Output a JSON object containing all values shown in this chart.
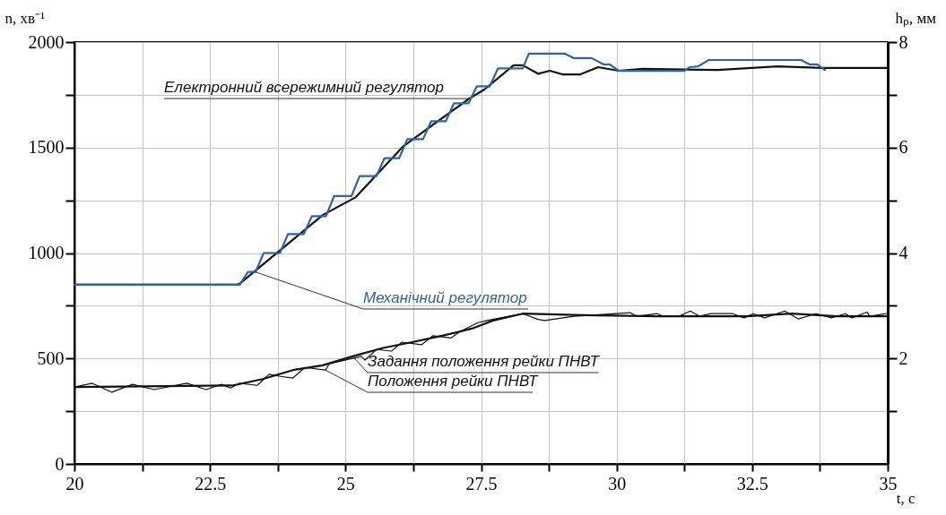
{
  "chart_data": {
    "type": "line",
    "xlabel": "t, c",
    "ylabel": "n, хв⁻¹",
    "y2label": "hₚ, мм",
    "xlim": [
      20,
      35
    ],
    "xticks": [
      20,
      {
        "value": 21.25,
        "label": null
      },
      22.5,
      {
        "value": 23.75,
        "label": null
      },
      25,
      {
        "value": 26.25,
        "label": null
      },
      27.5,
      {
        "value": 28.75,
        "label": null
      },
      30,
      {
        "value": 31.25,
        "label": null
      },
      32.5,
      {
        "value": 33.75,
        "label": null
      },
      35
    ],
    "ylim": [
      0,
      2000
    ],
    "yticks": [
      0,
      {
        "value": 250,
        "label": null
      },
      500,
      {
        "value": 750,
        "label": null
      },
      1000,
      {
        "value": 1250,
        "label": null
      },
      1500,
      {
        "value": 1750,
        "label": null
      },
      2000
    ],
    "y2lim": [
      0,
      8
    ],
    "y2ticks": [
      {
        "value": 1,
        "label": null
      },
      2,
      {
        "value": 3,
        "label": null
      },
      4,
      {
        "value": 5,
        "label": null
      },
      6,
      {
        "value": 7,
        "label": null
      },
      8
    ],
    "grid": true,
    "series": [
      {
        "name": "Електронний всережимний регулятор",
        "color": "#111111",
        "x": [
          20,
          23.0,
          23.04,
          24.58,
          25.19,
          26.07,
          27.28,
          27.56,
          28.1,
          28.27,
          28.55,
          28.77,
          29.0,
          29.33,
          29.66,
          30.04,
          30.48,
          31.86,
          32.97,
          33.8,
          35
        ],
        "values": [
          850,
          850,
          853,
          1180,
          1265,
          1507,
          1732,
          1775,
          1890,
          1890,
          1850,
          1864,
          1847,
          1847,
          1881,
          1864,
          1873,
          1868,
          1885,
          1877,
          1877
        ]
      },
      {
        "name": "Механічний регулятор",
        "color": "#2f64a8",
        "x": [
          20,
          23.05,
          23.2,
          23.34,
          23.49,
          23.79,
          23.94,
          24.23,
          24.38,
          24.64,
          24.79,
          25.11,
          25.26,
          25.57,
          25.72,
          25.99,
          26.14,
          26.43,
          26.58,
          26.85,
          27.0,
          27.27,
          27.42,
          27.66,
          27.81,
          28.27,
          28.38,
          29.05,
          29.21,
          29.54,
          29.76,
          29.87,
          30.04,
          31.25,
          31.35,
          31.5,
          31.7,
          33.4,
          33.56,
          33.7,
          33.84
        ],
        "values": [
          850,
          850,
          910,
          910,
          1000,
          1000,
          1090,
          1090,
          1175,
          1175,
          1270,
          1270,
          1365,
          1365,
          1450,
          1450,
          1540,
          1540,
          1625,
          1625,
          1710,
          1710,
          1790,
          1790,
          1875,
          1875,
          1945,
          1945,
          1924,
          1924,
          1894,
          1894,
          1864,
          1864,
          1881,
          1885,
          1915,
          1915,
          1894,
          1894,
          1868
        ]
      },
      {
        "name": "Задання положення рейки ПНВТ",
        "color": "#111111",
        "axis": "y2",
        "x": [
          20,
          22.93,
          23.47,
          24.03,
          24.58,
          25.13,
          25.69,
          26.23,
          26.78,
          27.34,
          27.72,
          28.27,
          29.38,
          30.75,
          32.4,
          33.23,
          34.06,
          35
        ],
        "values": [
          1.46,
          1.49,
          1.61,
          1.78,
          1.87,
          2.04,
          2.2,
          2.31,
          2.43,
          2.57,
          2.72,
          2.85,
          2.82,
          2.8,
          2.8,
          2.85,
          2.8,
          2.8
        ]
      },
      {
        "name": "Положення рейки ПНВТ",
        "color": "#111111",
        "axis": "y2",
        "x": [
          20,
          20.33,
          20.69,
          21.07,
          21.47,
          22.07,
          22.43,
          22.71,
          22.88,
          23.04,
          23.37,
          23.59,
          23.8,
          24.03,
          24.25,
          24.63,
          24.7,
          25.29,
          25.36,
          25.57,
          25.85,
          26.04,
          26.4,
          26.61,
          26.95,
          27.11,
          27.44,
          27.61,
          28.27,
          28.55,
          28.67,
          29.21,
          30.25,
          30.37,
          30.75,
          30.86,
          31.15,
          31.36,
          31.53,
          31.74,
          32.14,
          32.35,
          32.52,
          32.73,
          33.1,
          33.35,
          33.68,
          33.96,
          34.22,
          34.34,
          34.62,
          34.67,
          34.97
        ],
        "values": [
          1.46,
          1.53,
          1.36,
          1.51,
          1.41,
          1.53,
          1.41,
          1.51,
          1.44,
          1.53,
          1.49,
          1.7,
          1.66,
          1.63,
          1.83,
          1.78,
          1.9,
          2.04,
          1.97,
          2.17,
          2.14,
          2.31,
          2.26,
          2.43,
          2.39,
          2.51,
          2.68,
          2.72,
          2.85,
          2.74,
          2.72,
          2.8,
          2.87,
          2.8,
          2.85,
          2.8,
          2.8,
          2.9,
          2.8,
          2.85,
          2.85,
          2.77,
          2.85,
          2.77,
          2.9,
          2.75,
          2.85,
          2.77,
          2.85,
          2.77,
          2.88,
          2.8,
          2.85
        ]
      }
    ]
  }
}
